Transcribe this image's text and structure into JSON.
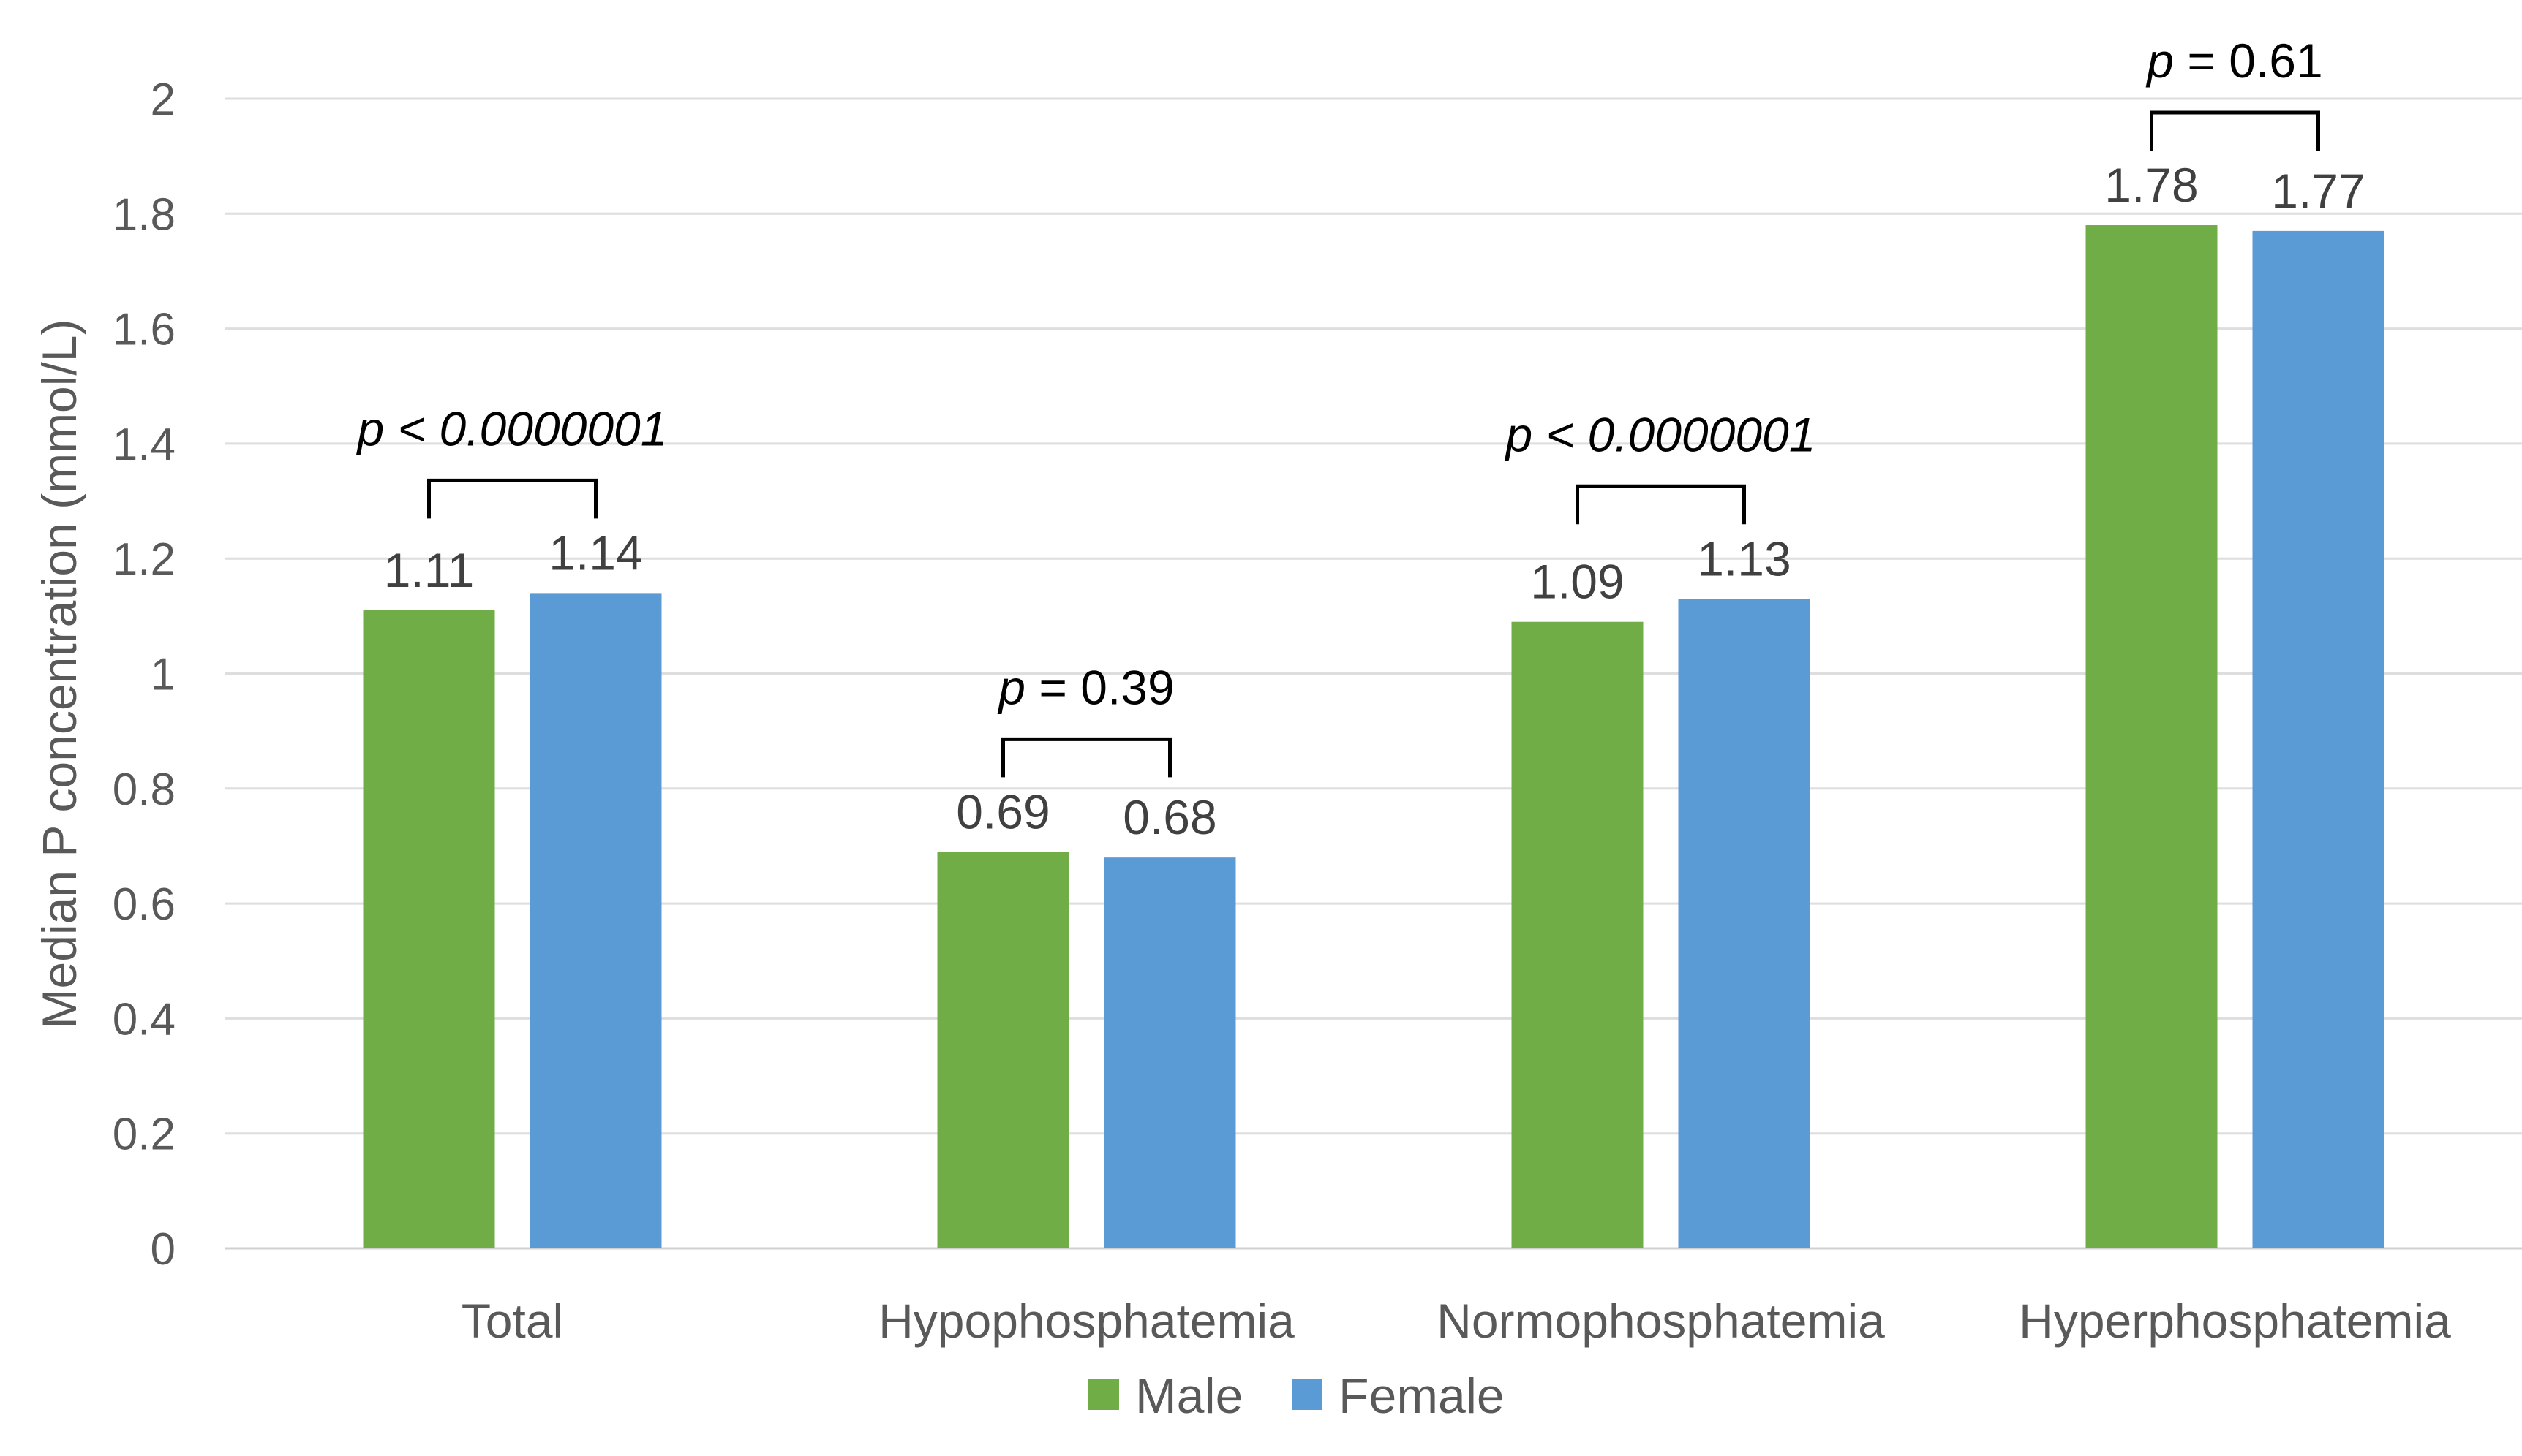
{
  "chart_data": {
    "type": "bar",
    "title": "",
    "xlabel": "",
    "ylabel": "Median P concentration (mmol/L)",
    "ylim": [
      0,
      2
    ],
    "yticks": [
      "0",
      "0.2",
      "0.4",
      "0.6",
      "0.8",
      "1",
      "1.2",
      "1.4",
      "1.6",
      "1.8",
      "2"
    ],
    "grid": true,
    "legend_position": "bottom",
    "categories": [
      "Total",
      "Hypophosphatemia",
      "Normophosphatemia",
      "Hyperphosphatemia"
    ],
    "series": [
      {
        "name": "Male",
        "color": "#70AD47",
        "values": [
          1.11,
          0.69,
          1.09,
          1.78
        ],
        "labels": [
          "1.11",
          "0.69",
          "1.09",
          "1.78"
        ]
      },
      {
        "name": "Female",
        "color": "#5B9BD5",
        "values": [
          1.14,
          0.68,
          1.13,
          1.77
        ],
        "labels": [
          "1.14",
          "0.68",
          "1.13",
          "1.77"
        ]
      }
    ],
    "annotations": [
      {
        "category": "Total",
        "p": "p",
        "rest": " < 0.0000001",
        "all_italic": true
      },
      {
        "category": "Hypophosphatemia",
        "p": "p",
        "rest": " = 0.39",
        "all_italic": false
      },
      {
        "category": "Normophosphatemia",
        "p": "p",
        "rest": " < 0.0000001",
        "all_italic": true
      },
      {
        "category": "Hyperphosphatemia",
        "p": "p",
        "rest": " = 0.61",
        "all_italic": false
      }
    ]
  }
}
